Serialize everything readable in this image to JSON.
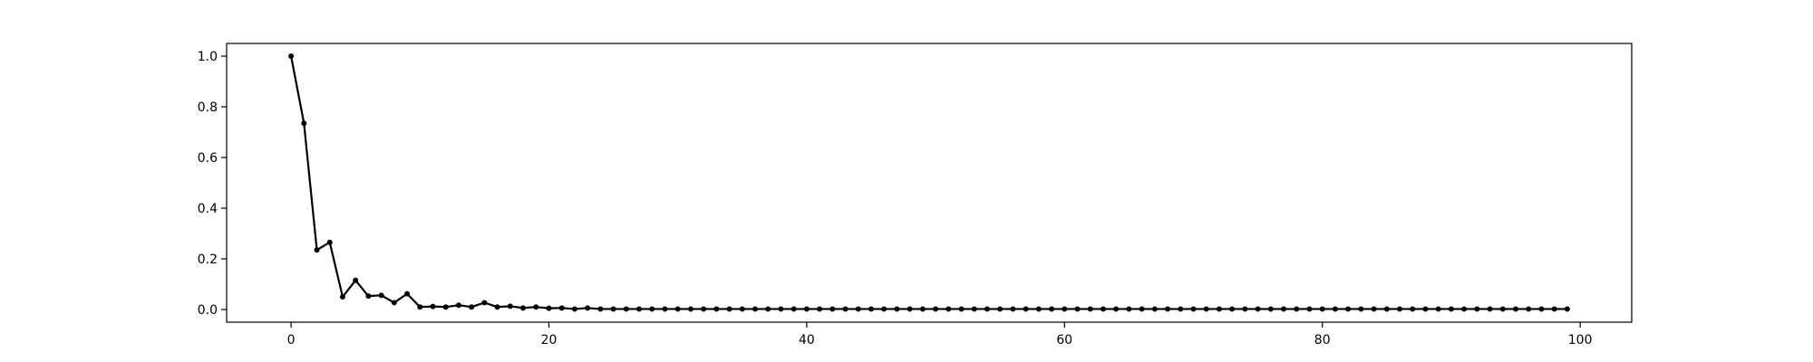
{
  "chart_data": {
    "type": "line",
    "title": "",
    "xlabel": "",
    "ylabel": "",
    "xlim": [
      -5,
      104
    ],
    "ylim": [
      -0.05,
      1.05
    ],
    "grid": false,
    "legend": "none",
    "line_color": "#000000",
    "marker": "dot",
    "x_ticks": [
      0,
      20,
      40,
      60,
      80,
      100
    ],
    "y_ticks": [
      0.0,
      0.2,
      0.4,
      0.6,
      0.8,
      1.0
    ],
    "x_tick_labels": [
      "0",
      "20",
      "40",
      "60",
      "80",
      "100"
    ],
    "y_tick_labels": [
      "0.0",
      "0.2",
      "0.4",
      "0.6",
      "0.8",
      "1.0"
    ],
    "series": [
      {
        "x_start": 0,
        "values": [
          1.0,
          0.735,
          0.235,
          0.265,
          0.05,
          0.115,
          0.053,
          0.056,
          0.027,
          0.062,
          0.01,
          0.012,
          0.01,
          0.017,
          0.01,
          0.027,
          0.01,
          0.013,
          0.006,
          0.01,
          0.005,
          0.006,
          0.002,
          0.006,
          0.002,
          0.002,
          0.002,
          0.002,
          0.002,
          0.002,
          0.002,
          0.002,
          0.002,
          0.002,
          0.002,
          0.002,
          0.002,
          0.002,
          0.002,
          0.002,
          0.002,
          0.002,
          0.002,
          0.002,
          0.002,
          0.002,
          0.002,
          0.002,
          0.002,
          0.002,
          0.002,
          0.002,
          0.002,
          0.002,
          0.002,
          0.002,
          0.002,
          0.002,
          0.002,
          0.002,
          0.002,
          0.002,
          0.002,
          0.002,
          0.002,
          0.002,
          0.002,
          0.002,
          0.002,
          0.002,
          0.002,
          0.002,
          0.002,
          0.002,
          0.002,
          0.002,
          0.002,
          0.002,
          0.002,
          0.002,
          0.002,
          0.002,
          0.002,
          0.002,
          0.002,
          0.002,
          0.002,
          0.002,
          0.002,
          0.002,
          0.002,
          0.002,
          0.002,
          0.002,
          0.002,
          0.002,
          0.002,
          0.002,
          0.002,
          0.002
        ]
      }
    ]
  }
}
